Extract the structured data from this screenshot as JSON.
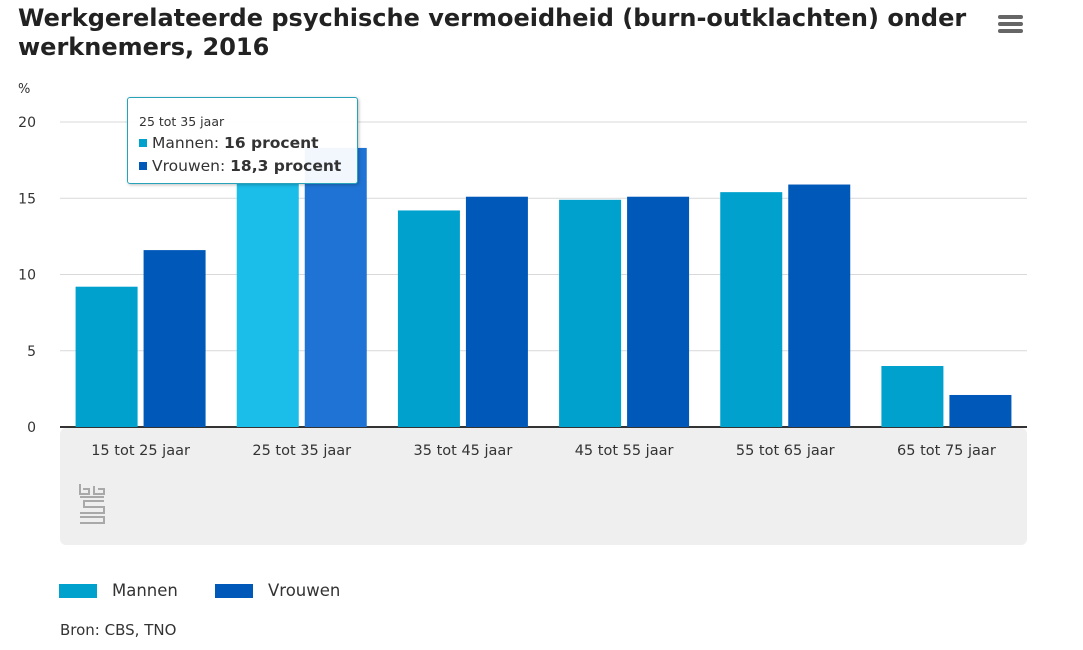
{
  "title": "Werkgerelateerde psychische vermoeidheid (burn-outklachten) onder werknemers, 2016",
  "menu": {
    "icon": "hamburger-menu-icon"
  },
  "chart_data": {
    "type": "bar",
    "ylabel": "%",
    "ylim": [
      0,
      20
    ],
    "yticks": [
      0,
      5,
      10,
      15,
      20
    ],
    "grid": true,
    "categories": [
      "15 tot 25 jaar",
      "25 tot 35 jaar",
      "35 tot 45 jaar",
      "45 tot 55 jaar",
      "55 tot 65 jaar",
      "65 tot 75 jaar"
    ],
    "series": [
      {
        "name": "Mannen",
        "color": "#00a1cd",
        "hover_color": "#1bbde9",
        "values": [
          9.2,
          16,
          14.2,
          14.9,
          15.4,
          4.0
        ]
      },
      {
        "name": "Vrouwen",
        "color": "#0058b8",
        "hover_color": "#1f73d4",
        "values": [
          11.6,
          18.3,
          15.1,
          15.1,
          15.9,
          2.1
        ]
      }
    ],
    "highlighted_index": 1,
    "legend_position": "bottom-left"
  },
  "tooltip": {
    "category": "25 tot 35 jaar",
    "rows": [
      {
        "label": "Mannen",
        "value": "16 procent",
        "color": "#00a1cd"
      },
      {
        "label": "Vrouwen",
        "value": "18,3 procent",
        "color": "#0058b8"
      }
    ]
  },
  "legend": [
    {
      "label": "Mannen",
      "color": "#00a1cd"
    },
    {
      "label": "Vrouwen",
      "color": "#0058b8"
    }
  ],
  "logo": {
    "icon": "cbs-logo-icon"
  },
  "source": "Bron: CBS, TNO"
}
